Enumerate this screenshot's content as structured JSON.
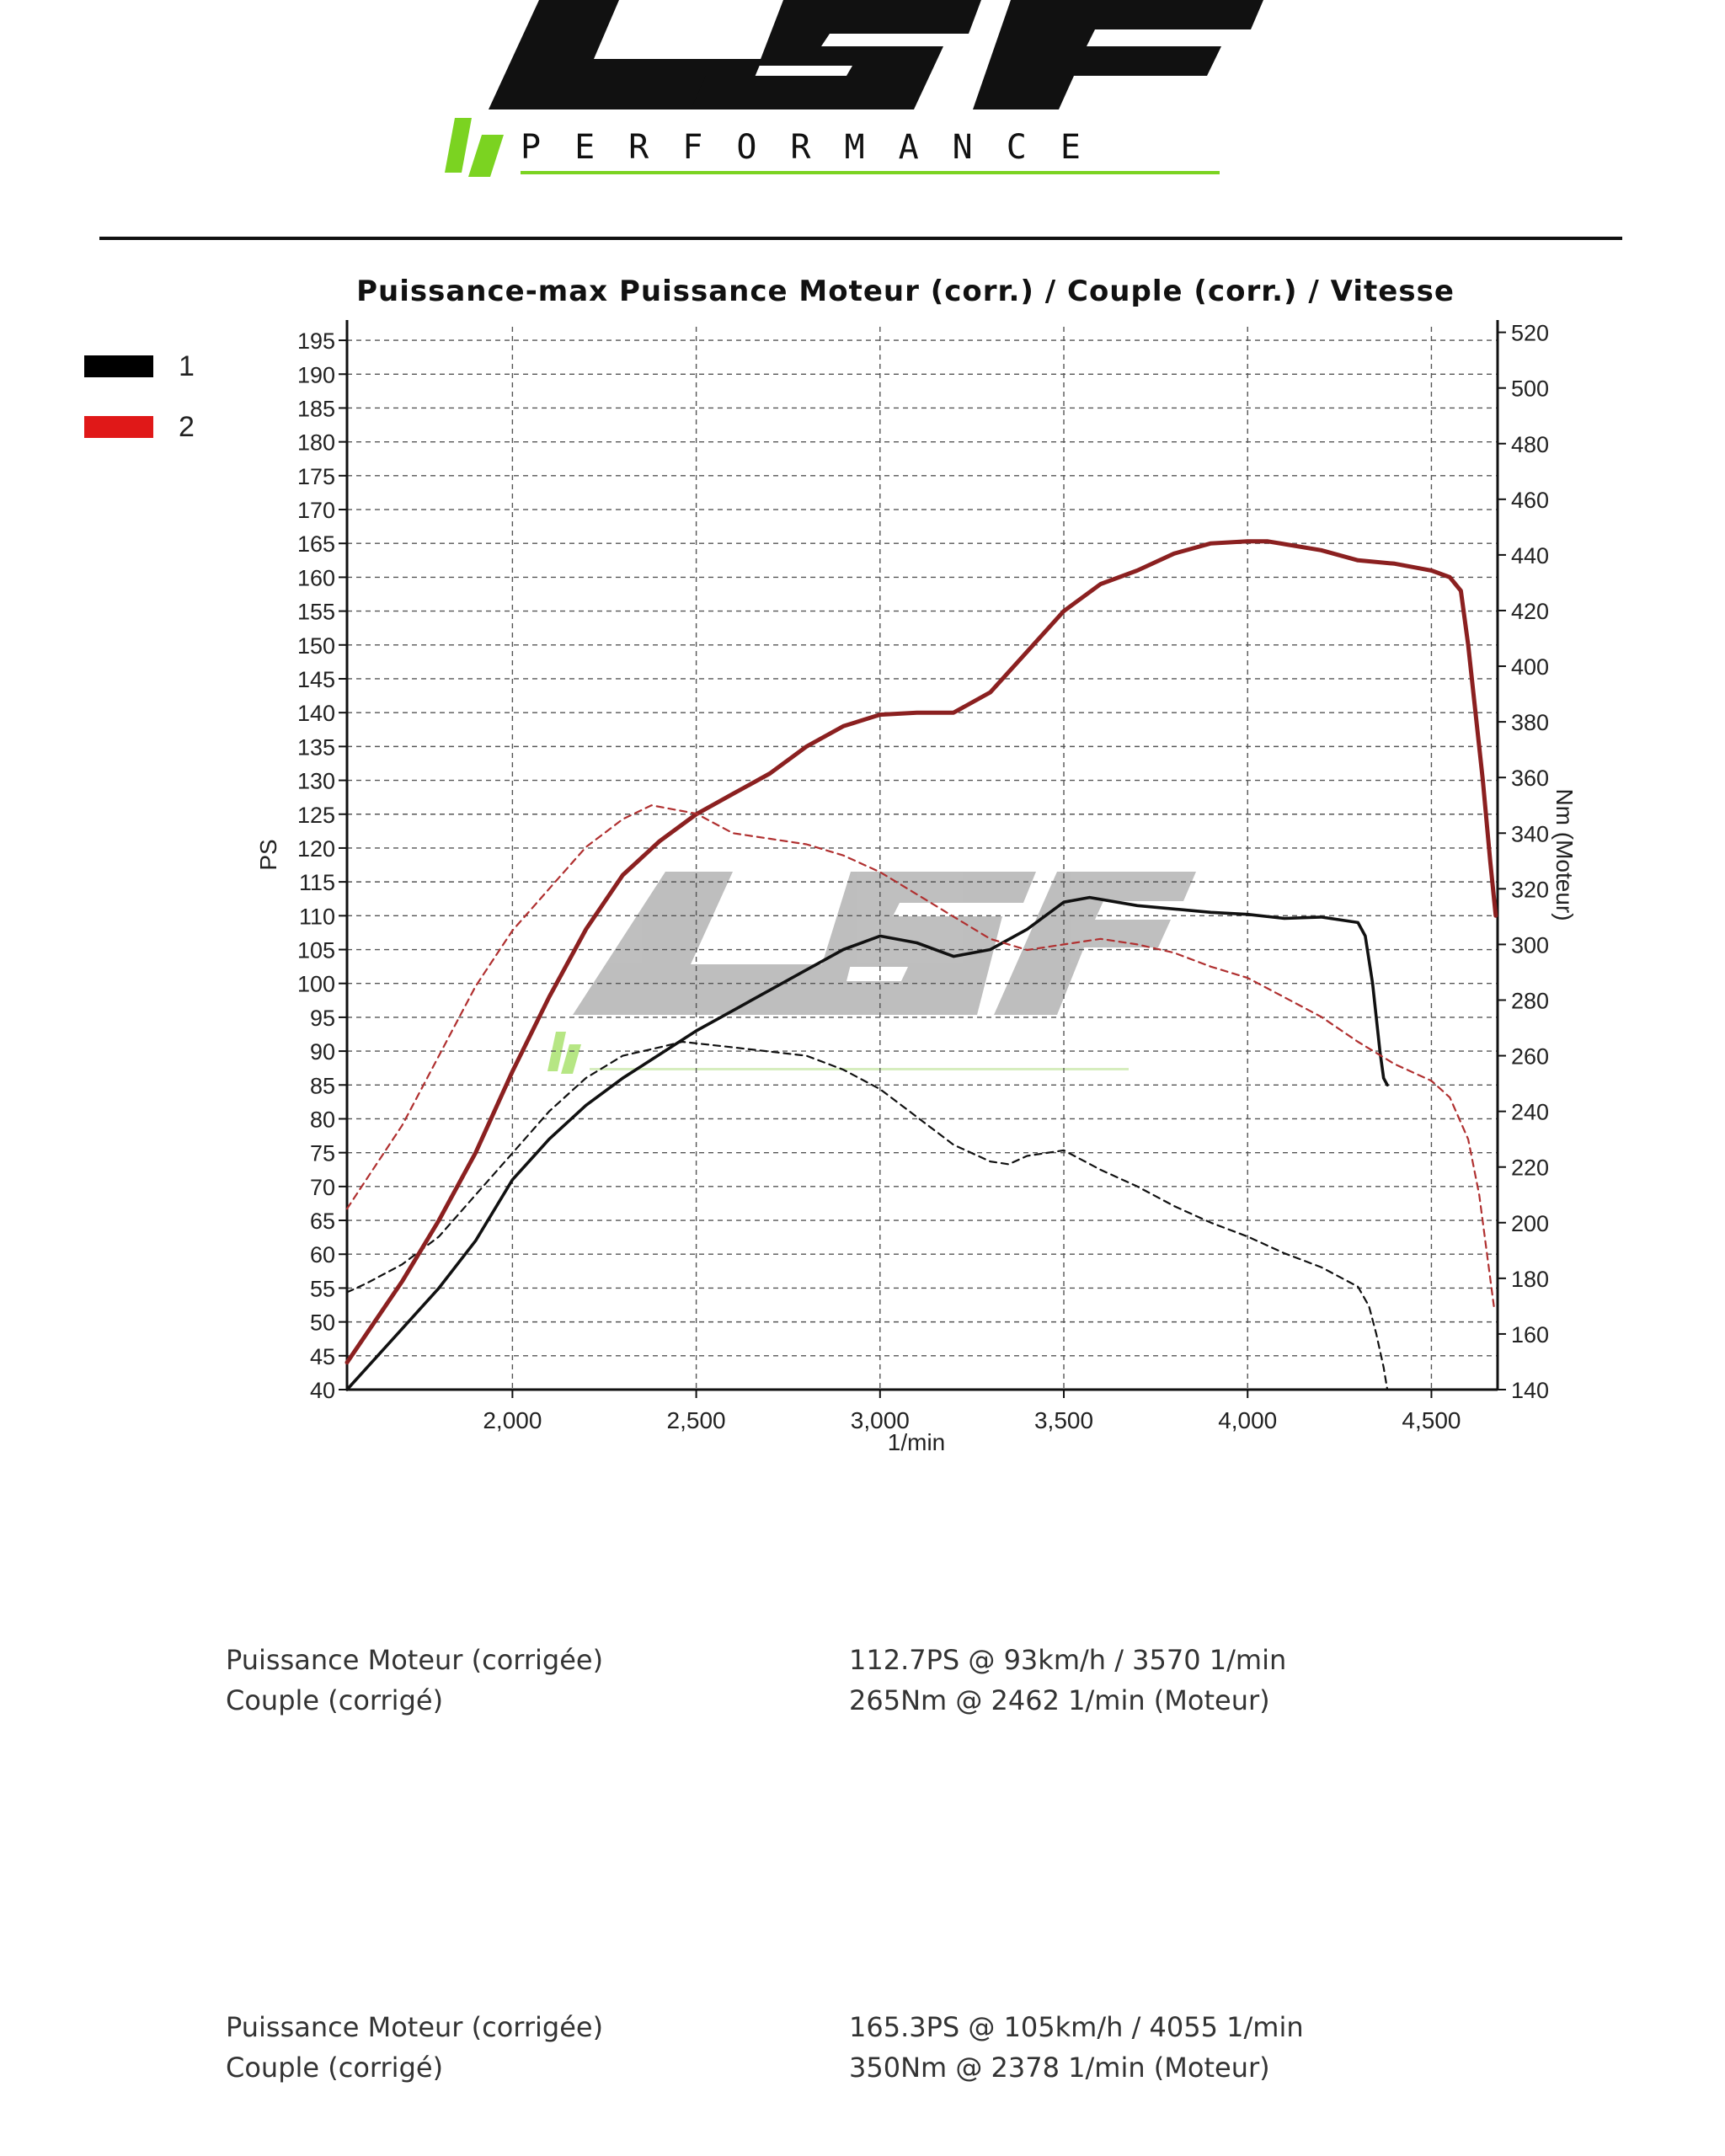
{
  "logo": {
    "brand": "LSF",
    "tagline": "PERFORMANCE",
    "brand_color": "#111111",
    "accent_color": "#7bd321"
  },
  "chart_data": {
    "type": "line",
    "title": "Puissance-max Puissance Moteur (corr.) / Couple (corr.) / Vitesse",
    "xlabel": "1/min",
    "ylabel_left": "PS",
    "ylabel_right": "Nm (Moteur)",
    "xlim": [
      1550,
      4680
    ],
    "ylim_left": [
      40,
      197
    ],
    "ylim_right": [
      140,
      522
    ],
    "x_ticks": [
      2000,
      2500,
      3000,
      3500,
      4000,
      4500
    ],
    "x_tick_labels": [
      "2,000",
      "2,500",
      "3,000",
      "3,500",
      "4,000",
      "4,500"
    ],
    "y_left_ticks": [
      40,
      45,
      50,
      55,
      60,
      65,
      70,
      75,
      80,
      85,
      90,
      95,
      100,
      105,
      110,
      115,
      120,
      125,
      130,
      135,
      140,
      145,
      150,
      155,
      160,
      165,
      170,
      175,
      180,
      185,
      190,
      195
    ],
    "y_right_ticks": [
      140,
      160,
      180,
      200,
      220,
      240,
      260,
      280,
      300,
      320,
      340,
      360,
      380,
      400,
      420,
      440,
      460,
      480,
      500,
      520
    ],
    "grid": true,
    "legend": [
      {
        "name": "1",
        "color": "#000000"
      },
      {
        "name": "2",
        "color": "#d42020"
      }
    ],
    "series": [
      {
        "legend": "1",
        "kind": "power",
        "axis": "left",
        "color": "#111111",
        "dashed": false,
        "x": [
          1550,
          1600,
          1700,
          1800,
          1900,
          2000,
          2100,
          2200,
          2300,
          2400,
          2500,
          2600,
          2700,
          2800,
          2900,
          3000,
          3100,
          3200,
          3300,
          3400,
          3500,
          3570,
          3700,
          3800,
          3900,
          4000,
          4100,
          4200,
          4300,
          4320,
          4340,
          4360,
          4370,
          4380
        ],
        "y": [
          40,
          43,
          49,
          55,
          62,
          71,
          77,
          82,
          86,
          89.5,
          93,
          96,
          99,
          102,
          105,
          107,
          106,
          104,
          105,
          108,
          112,
          112.7,
          111.5,
          111,
          110.5,
          110.2,
          109.6,
          109.8,
          109,
          107,
          100,
          90,
          86,
          85
        ]
      },
      {
        "legend": "1",
        "kind": "torque",
        "axis": "right",
        "color": "#111111",
        "dashed": true,
        "x": [
          1550,
          1600,
          1700,
          1800,
          1900,
          2000,
          2100,
          2200,
          2300,
          2400,
          2462,
          2600,
          2800,
          2900,
          3000,
          3100,
          3200,
          3300,
          3350,
          3400,
          3500,
          3600,
          3700,
          3800,
          3900,
          4000,
          4100,
          4200,
          4300,
          4330,
          4350,
          4370,
          4380
        ],
        "y": [
          175,
          178,
          185,
          195,
          210,
          225,
          240,
          252,
          260,
          263,
          265,
          263,
          260,
          255,
          248,
          238,
          228,
          222,
          221,
          224,
          226,
          219,
          213,
          206,
          200,
          195,
          189,
          184,
          177,
          170,
          160,
          148,
          140
        ]
      },
      {
        "legend": "2",
        "kind": "power",
        "axis": "left",
        "color": "#8b2020",
        "dashed": false,
        "x": [
          1550,
          1600,
          1700,
          1800,
          1900,
          2000,
          2100,
          2200,
          2300,
          2400,
          2500,
          2600,
          2700,
          2800,
          2900,
          3000,
          3100,
          3200,
          3300,
          3400,
          3500,
          3600,
          3700,
          3800,
          3900,
          4000,
          4055,
          4200,
          4300,
          4400,
          4500,
          4550,
          4580,
          4600,
          4620,
          4640,
          4660,
          4675
        ],
        "y": [
          44,
          48,
          56,
          65,
          75,
          87,
          98,
          108,
          116,
          121,
          125,
          128,
          131,
          135,
          138,
          139.7,
          140,
          140,
          143,
          149,
          155,
          159,
          161,
          163.5,
          165,
          165.3,
          165.3,
          164,
          162.5,
          162,
          161,
          160,
          158,
          150,
          140,
          130,
          118,
          110
        ]
      },
      {
        "legend": "2",
        "kind": "torque",
        "axis": "right",
        "color": "#b03030",
        "dashed": true,
        "x": [
          1550,
          1600,
          1700,
          1800,
          1900,
          2000,
          2100,
          2200,
          2300,
          2378,
          2500,
          2600,
          2700,
          2800,
          2900,
          3000,
          3100,
          3200,
          3300,
          3400,
          3500,
          3600,
          3700,
          3800,
          3900,
          4000,
          4100,
          4200,
          4300,
          4400,
          4500,
          4550,
          4600,
          4630,
          4650,
          4670
        ],
        "y": [
          205,
          215,
          235,
          260,
          285,
          305,
          320,
          335,
          345,
          350,
          347,
          340,
          338,
          336,
          332,
          326,
          318,
          310,
          302,
          298,
          300,
          302,
          300,
          297,
          292,
          288,
          281,
          274,
          265,
          257,
          251,
          245,
          230,
          210,
          190,
          170
        ]
      }
    ]
  },
  "results": [
    {
      "label_power": "Puissance Moteur (corrigée)",
      "value_power": "112.7PS @ 93km/h / 3570 1/min",
      "label_torque": "Couple (corrigé)",
      "value_torque": "265Nm @ 2462 1/min (Moteur)"
    },
    {
      "label_power": "Puissance Moteur (corrigée)",
      "value_power": "165.3PS @ 105km/h / 4055 1/min",
      "label_torque": "Couple (corrigé)",
      "value_torque": "350Nm @ 2378 1/min (Moteur)"
    }
  ]
}
